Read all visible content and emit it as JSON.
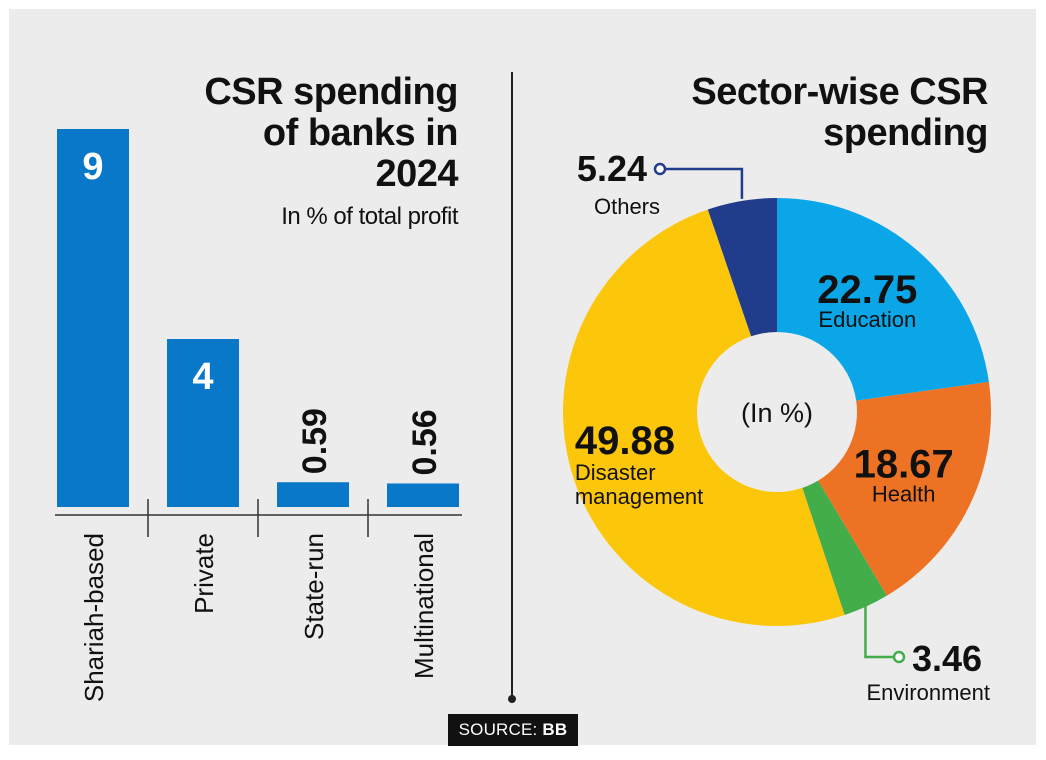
{
  "charts": {
    "bar": {
      "title_line1": "CSR spending",
      "title_line2": "of banks in",
      "title_line3": "2024",
      "subtitle": "In % of total profit"
    },
    "pie": {
      "title_line1": "Sector-wise CSR",
      "title_line2": "spending",
      "center_label": "(In %)"
    }
  },
  "source": {
    "prefix": "SOURCE:",
    "name": "BB"
  },
  "chart_data": [
    {
      "type": "bar",
      "title": "CSR spending of banks in 2024",
      "subtitle": "In % of total profit",
      "categories": [
        "Shariah-based",
        "Private",
        "State-run",
        "Multinational"
      ],
      "values": [
        9,
        4,
        0.59,
        0.56
      ],
      "value_labels": [
        "9",
        "4",
        "0.59",
        "0.56"
      ],
      "ylim": [
        0,
        9
      ],
      "color": "#0a78c9"
    },
    {
      "type": "pie",
      "variant": "donut",
      "title": "Sector-wise CSR spending",
      "center_label": "(In %)",
      "slices": [
        {
          "label": "Education",
          "value": 22.75,
          "value_label": "22.75",
          "color": "#0aa6e8"
        },
        {
          "label": "Health",
          "value": 18.67,
          "value_label": "18.67",
          "color": "#ee7223"
        },
        {
          "label": "Environment",
          "value": 3.46,
          "value_label": "3.46",
          "color": "#43ad4a"
        },
        {
          "label": "Disaster management",
          "value": 49.88,
          "value_label": "49.88",
          "color": "#fcc70b"
        },
        {
          "label": "Others",
          "value": 5.24,
          "value_label": "5.24",
          "color": "#203c8a"
        }
      ]
    }
  ]
}
